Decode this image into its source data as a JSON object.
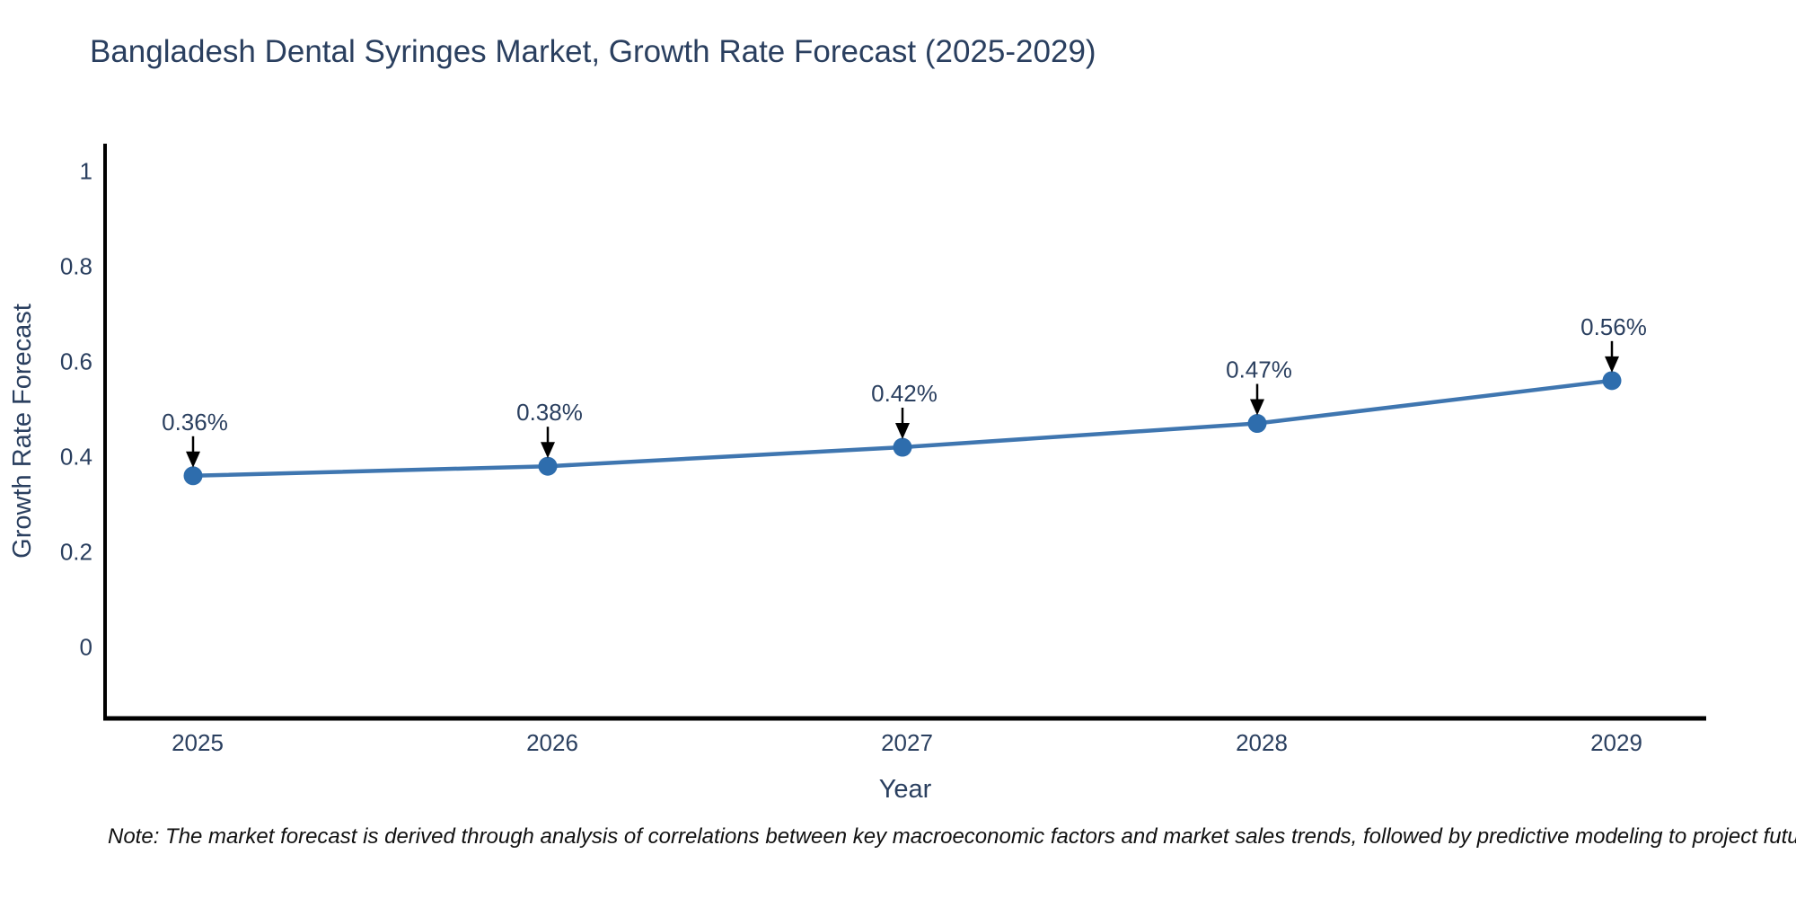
{
  "title": "Bangladesh Dental Syringes Market, Growth Rate Forecast (2025-2029)",
  "note": "Note: The market forecast is derived through analysis of correlations between key macroeconomic factors and market sales trends, followed by predictive modeling to project future sales",
  "chart_data": {
    "type": "line",
    "title": "Bangladesh Dental Syringes Market, Growth Rate Forecast (2025-2029)",
    "categories": [
      "2025",
      "2026",
      "2027",
      "2028",
      "2029"
    ],
    "values": [
      0.36,
      0.38,
      0.42,
      0.47,
      0.56
    ],
    "point_labels": [
      "0.36%",
      "0.38%",
      "0.42%",
      "0.47%",
      "0.56%"
    ],
    "xlabel": "Year",
    "ylabel": "Growth Rate Forecast",
    "yticks": [
      0,
      0.2,
      0.4,
      0.6,
      0.8,
      1
    ],
    "ytick_labels": [
      "0",
      "0.2",
      "0.4",
      "0.6",
      "0.8",
      "1"
    ],
    "ylim": [
      -0.15,
      1.058
    ],
    "grid": false,
    "legend_position": "none",
    "annotation_style": "down-arrow-to-point",
    "colors": {
      "line": "#3f76b0",
      "marker": "#2e6dad",
      "axis": "#000000",
      "arrow": "#000000",
      "tick_text": "#2a3f5f",
      "title_text": "#2a3f5f",
      "annotation_text": "#2a3f5f",
      "note_text": "#111111",
      "background": "#ffffff"
    }
  }
}
